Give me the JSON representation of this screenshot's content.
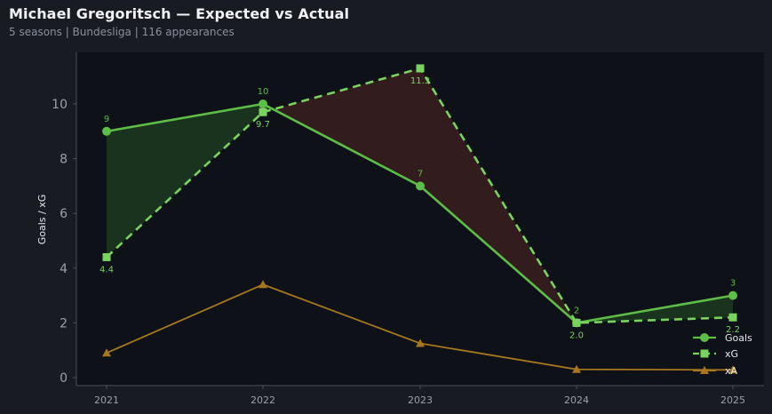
{
  "header": {
    "title": "Michael Gregoritsch — Expected vs Actual",
    "subtitle": "5 seasons | Bundesliga | 116 appearances"
  },
  "colors": {
    "background": "#181b22",
    "plot_background": "#0e1117",
    "goals": "#5cbd47",
    "xg": "#79d35f",
    "xa": "#a7771f",
    "overperform_fill": "#1c3a20",
    "underperform_fill": "#3a1e1e"
  },
  "chart_data": {
    "type": "line",
    "title": "Michael Gregoritsch — Expected vs Actual",
    "subtitle": "5 seasons | Bundesliga | 116 appearances",
    "xlabel": "",
    "ylabel": "Goals / xG",
    "categories": [
      "2021",
      "2022",
      "2023",
      "2024",
      "2025"
    ],
    "ylim": [
      -0.3,
      11.9
    ],
    "yticks": [
      "0",
      "2",
      "4",
      "6",
      "8",
      "10"
    ],
    "grid": false,
    "legend_position": "bottom-right",
    "series": [
      {
        "name": "Goals",
        "values": [
          9,
          10,
          7,
          2,
          3
        ],
        "labels": [
          "9",
          "10",
          "7",
          "2",
          "3"
        ],
        "marker": "circle",
        "style": "solid"
      },
      {
        "name": "xG",
        "values": [
          4.4,
          9.7,
          11.3,
          2.0,
          2.2
        ],
        "labels": [
          "4.4",
          "9.7",
          "11.3",
          "2.0",
          "2.2"
        ],
        "marker": "square",
        "style": "dashed"
      },
      {
        "name": "xA",
        "values": [
          0.9,
          3.4,
          1.25,
          0.3,
          0.28
        ],
        "marker": "triangle",
        "style": "solid"
      }
    ]
  }
}
